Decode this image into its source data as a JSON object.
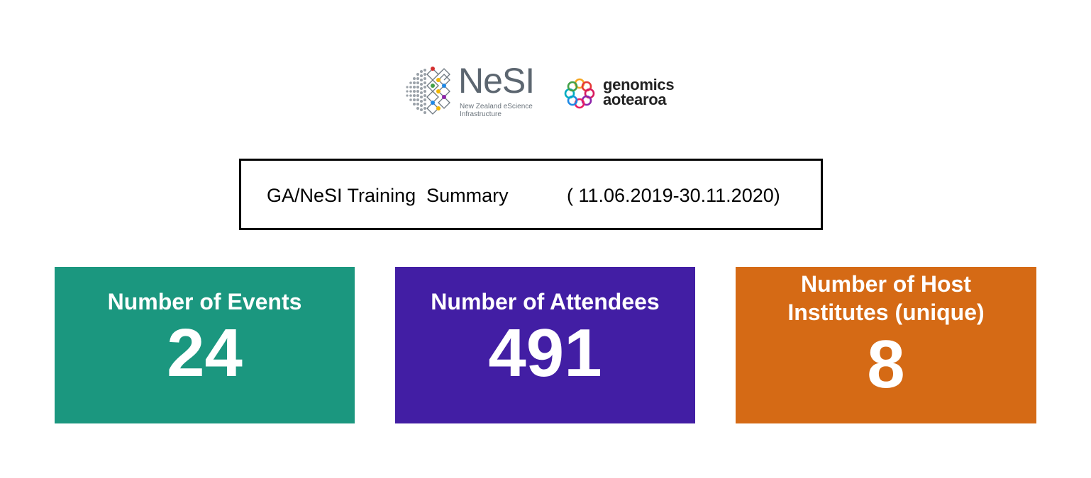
{
  "logos": {
    "nesi": {
      "name": "NeSI",
      "tagline_line1": "New Zealand eScience",
      "tagline_line2": "Infrastructure"
    },
    "genomics_aotearoa": {
      "line1": "genomics",
      "line2": "aotearoa"
    }
  },
  "summary": {
    "title": "GA/NeSI Training  Summary",
    "date_range": "( 11.06.2019-30.11.2020)"
  },
  "cards": {
    "events": {
      "label": "Number of Events",
      "value": "24",
      "color": "#1b977f"
    },
    "attendees": {
      "label": "Number of Attendees",
      "value": "491",
      "color": "#421ea4"
    },
    "hosts": {
      "label_line1": "Number of Host",
      "label_line2": "Institutes (unique)",
      "value": "8",
      "color": "#d56a15"
    }
  }
}
